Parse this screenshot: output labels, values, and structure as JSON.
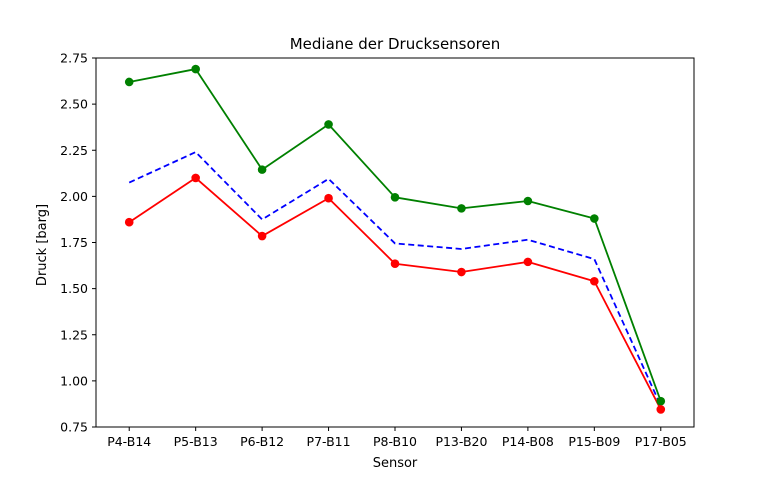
{
  "chart_data": {
    "type": "line",
    "title": "Mediane der Drucksensoren",
    "xlabel": "Sensor",
    "ylabel": "Druck [barg]",
    "categories": [
      "P4-B14",
      "P5-B13",
      "P6-B12",
      "P7-B11",
      "P8-B10",
      "P13-B20",
      "P14-B08",
      "P15-B09",
      "P17-B05"
    ],
    "ylim": [
      0.75,
      2.75
    ],
    "yticks": [
      "0.75",
      "1.00",
      "1.25",
      "1.50",
      "1.75",
      "2.00",
      "2.25",
      "2.50",
      "2.75"
    ],
    "grid": false,
    "series": [
      {
        "color": "#008000",
        "style": "solid",
        "marker": "circle",
        "values": [
          2.62,
          2.69,
          2.145,
          2.39,
          1.995,
          1.935,
          1.975,
          1.88,
          0.89
        ]
      },
      {
        "color": "#0000ff",
        "style": "dashed",
        "marker": "none",
        "values": [
          2.075,
          2.24,
          1.875,
          2.095,
          1.745,
          1.715,
          1.765,
          1.66,
          0.865
        ]
      },
      {
        "color": "#ff0000",
        "style": "solid",
        "marker": "circle",
        "values": [
          1.86,
          2.1,
          1.785,
          1.99,
          1.635,
          1.59,
          1.645,
          1.54,
          0.845
        ]
      }
    ]
  }
}
